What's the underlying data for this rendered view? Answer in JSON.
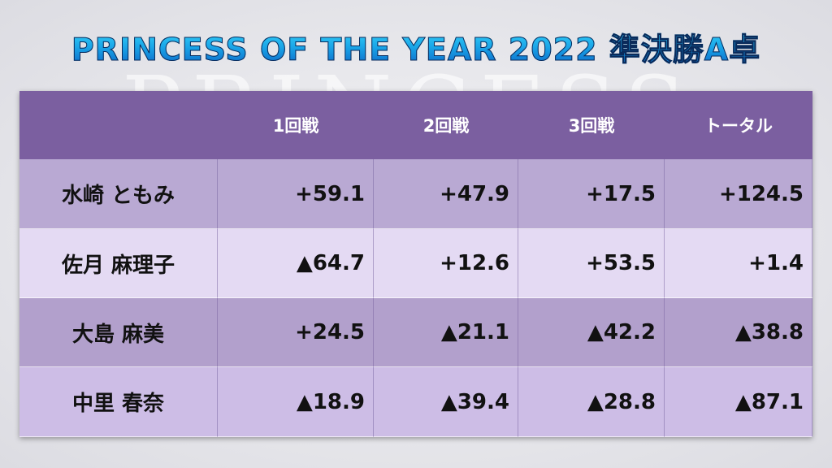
{
  "title": "PRINCESS OF THE YEAR 2022 準決勝A卓",
  "watermark": "PRINCESS",
  "table": {
    "header": [
      "1回戦",
      "2回戦",
      "3回戦",
      "トータル"
    ],
    "rows": [
      {
        "name": "水崎 ともみ",
        "scores": [
          "+59.1",
          "+47.9",
          "+17.5",
          "+124.5"
        ]
      },
      {
        "name": "佐月 麻理子",
        "scores": [
          "▲64.7",
          "+12.6",
          "+53.5",
          "+1.4"
        ]
      },
      {
        "name": "大島 麻美",
        "scores": [
          "+24.5",
          "▲21.1",
          "▲42.2",
          "▲38.8"
        ]
      },
      {
        "name": "中里 春奈",
        "scores": [
          "▲18.9",
          "▲39.4",
          "▲28.8",
          "▲87.1"
        ]
      }
    ]
  }
}
